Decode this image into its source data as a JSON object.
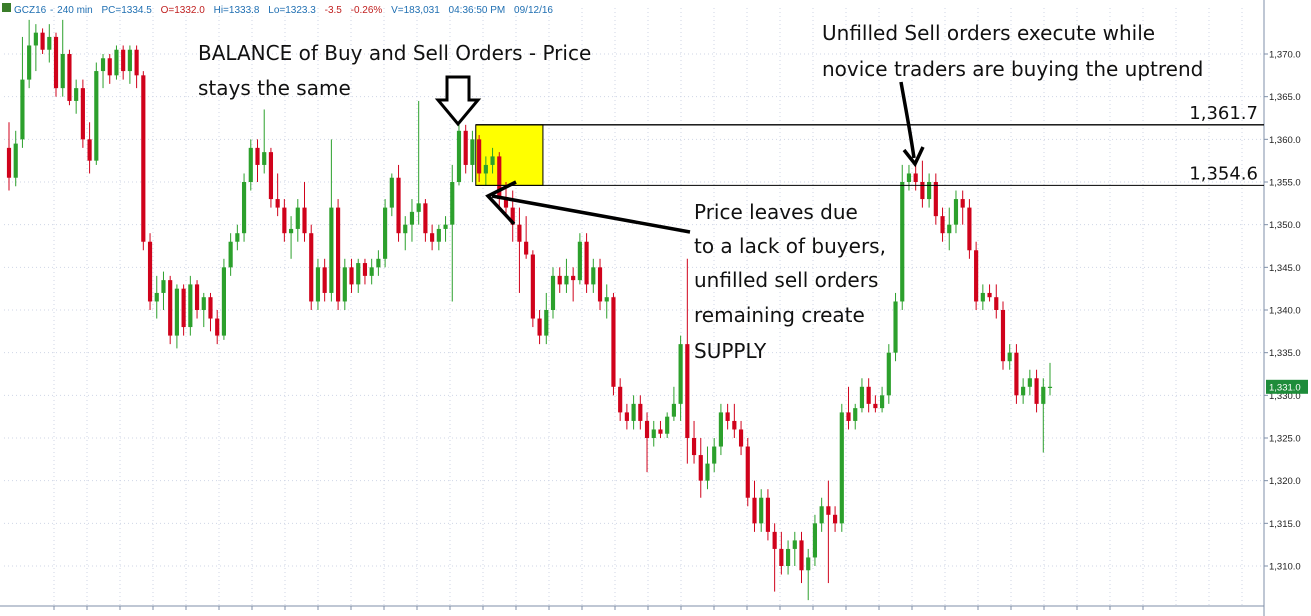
{
  "header": {
    "symbol": "GCZ16",
    "interval": "240 min",
    "pc": "PC=1334.5",
    "open": "O=1332.0",
    "high": "Hi=1333.8",
    "low": "Lo=1323.3",
    "change": "-3.5",
    "change_pct": "-0.26%",
    "volume": "V=183,031",
    "time": "04:36:50 PM",
    "date": "09/12/16"
  },
  "colors": {
    "up": "#2ca02c",
    "down": "#d0021b",
    "balance_box": "#ffff00",
    "grid": "#cfd6e6",
    "last_price_bg": "#1e8c3a"
  },
  "chart_data": {
    "type": "candlestick",
    "title": "",
    "xlabel": "",
    "ylabel": "",
    "ylim": [
      1306,
      1374
    ],
    "y_ticks": [
      1310,
      1315,
      1320,
      1325,
      1330,
      1335,
      1340,
      1345,
      1350,
      1355,
      1360,
      1365,
      1370
    ],
    "y_tick_labels": [
      "1,310.0",
      "1,315.0",
      "1,320.0",
      "1,325.0",
      "1,330.0",
      "1,335.0",
      "1,340.0",
      "1,345.0",
      "1,350.0",
      "1,355.0",
      "1,360.0",
      "1,365.0",
      "1,370.0"
    ],
    "last_price": 1331.0,
    "last_price_label": "1,331.0",
    "levels": [
      {
        "value": 1361.7,
        "label": "1,361.7"
      },
      {
        "value": 1354.6,
        "label": "1,354.6"
      }
    ],
    "balance_zone": {
      "start_index": 70,
      "end_index": 79,
      "low": 1354.6,
      "high": 1361.7
    },
    "annotations": {
      "balance": {
        "lines": [
          "BALANCE of Buy and Sell Orders - Price",
          "stays the same"
        ]
      },
      "unfilled": {
        "lines": [
          "Unfilled Sell orders execute while",
          "novice traders are buying the uptrend"
        ]
      },
      "leaves": {
        "lines": [
          "Price leaves due",
          "to a lack of buyers,",
          "unfilled sell orders",
          "remaining create",
          "SUPPLY"
        ]
      }
    },
    "candles": [
      {
        "o": 1359.0,
        "h": 1362.0,
        "l": 1354.0,
        "c": 1355.5
      },
      {
        "o": 1355.5,
        "h": 1361.0,
        "l": 1354.5,
        "c": 1359.5
      },
      {
        "o": 1360.0,
        "h": 1372.0,
        "l": 1359.0,
        "c": 1367.0
      },
      {
        "o": 1367.0,
        "h": 1374.0,
        "l": 1366.0,
        "c": 1371.0
      },
      {
        "o": 1371.0,
        "h": 1373.5,
        "l": 1368.0,
        "c": 1372.5
      },
      {
        "o": 1372.5,
        "h": 1373.0,
        "l": 1370.0,
        "c": 1370.5
      },
      {
        "o": 1370.5,
        "h": 1373.5,
        "l": 1369.0,
        "c": 1372.0
      },
      {
        "o": 1372.0,
        "h": 1372.5,
        "l": 1365.0,
        "c": 1366.0
      },
      {
        "o": 1366.0,
        "h": 1374.0,
        "l": 1365.0,
        "c": 1370.0
      },
      {
        "o": 1370.0,
        "h": 1370.5,
        "l": 1364.0,
        "c": 1364.5
      },
      {
        "o": 1364.5,
        "h": 1367.0,
        "l": 1363.0,
        "c": 1366.0
      },
      {
        "o": 1366.0,
        "h": 1367.0,
        "l": 1359.0,
        "c": 1360.0
      },
      {
        "o": 1360.0,
        "h": 1362.0,
        "l": 1356.0,
        "c": 1357.5
      },
      {
        "o": 1357.5,
        "h": 1369.0,
        "l": 1357.0,
        "c": 1368.0
      },
      {
        "o": 1368.0,
        "h": 1370.0,
        "l": 1366.0,
        "c": 1369.5
      },
      {
        "o": 1369.5,
        "h": 1370.0,
        "l": 1366.5,
        "c": 1367.5
      },
      {
        "o": 1367.5,
        "h": 1371.0,
        "l": 1367.0,
        "c": 1370.5
      },
      {
        "o": 1370.5,
        "h": 1371.0,
        "l": 1367.0,
        "c": 1368.0
      },
      {
        "o": 1368.0,
        "h": 1371.0,
        "l": 1366.5,
        "c": 1370.5
      },
      {
        "o": 1370.5,
        "h": 1371.0,
        "l": 1366.0,
        "c": 1367.5
      },
      {
        "o": 1367.5,
        "h": 1368.0,
        "l": 1347.0,
        "c": 1348.0
      },
      {
        "o": 1348.0,
        "h": 1349.0,
        "l": 1340.0,
        "c": 1341.0
      },
      {
        "o": 1341.0,
        "h": 1344.0,
        "l": 1339.0,
        "c": 1342.0
      },
      {
        "o": 1342.0,
        "h": 1344.5,
        "l": 1340.0,
        "c": 1343.5
      },
      {
        "o": 1343.5,
        "h": 1344.0,
        "l": 1336.0,
        "c": 1337.0
      },
      {
        "o": 1337.0,
        "h": 1343.0,
        "l": 1335.5,
        "c": 1342.5
      },
      {
        "o": 1342.5,
        "h": 1343.0,
        "l": 1337.0,
        "c": 1338.0
      },
      {
        "o": 1338.0,
        "h": 1344.0,
        "l": 1337.0,
        "c": 1343.0
      },
      {
        "o": 1343.0,
        "h": 1343.5,
        "l": 1339.0,
        "c": 1340.0
      },
      {
        "o": 1340.0,
        "h": 1342.0,
        "l": 1338.0,
        "c": 1341.5
      },
      {
        "o": 1341.5,
        "h": 1342.0,
        "l": 1337.5,
        "c": 1339.0
      },
      {
        "o": 1339.0,
        "h": 1340.0,
        "l": 1336.0,
        "c": 1337.0
      },
      {
        "o": 1337.0,
        "h": 1346.0,
        "l": 1336.5,
        "c": 1345.0
      },
      {
        "o": 1345.0,
        "h": 1349.0,
        "l": 1344.0,
        "c": 1348.0
      },
      {
        "o": 1348.0,
        "h": 1350.0,
        "l": 1347.0,
        "c": 1349.0
      },
      {
        "o": 1349.0,
        "h": 1356.0,
        "l": 1348.0,
        "c": 1355.0
      },
      {
        "o": 1355.0,
        "h": 1360.0,
        "l": 1354.0,
        "c": 1359.0
      },
      {
        "o": 1359.0,
        "h": 1360.0,
        "l": 1355.0,
        "c": 1357.0
      },
      {
        "o": 1357.0,
        "h": 1363.5,
        "l": 1356.0,
        "c": 1358.5
      },
      {
        "o": 1358.5,
        "h": 1359.0,
        "l": 1352.0,
        "c": 1353.0
      },
      {
        "o": 1353.0,
        "h": 1356.0,
        "l": 1351.0,
        "c": 1352.0
      },
      {
        "o": 1352.0,
        "h": 1353.0,
        "l": 1348.0,
        "c": 1349.0
      },
      {
        "o": 1349.0,
        "h": 1351.0,
        "l": 1346.0,
        "c": 1349.5
      },
      {
        "o": 1349.5,
        "h": 1353.0,
        "l": 1348.0,
        "c": 1352.0
      },
      {
        "o": 1352.0,
        "h": 1355.0,
        "l": 1348.0,
        "c": 1349.0
      },
      {
        "o": 1349.0,
        "h": 1350.0,
        "l": 1340.0,
        "c": 1341.0
      },
      {
        "o": 1341.0,
        "h": 1346.0,
        "l": 1340.0,
        "c": 1345.0
      },
      {
        "o": 1345.0,
        "h": 1346.0,
        "l": 1341.0,
        "c": 1342.0
      },
      {
        "o": 1342.0,
        "h": 1360.0,
        "l": 1341.0,
        "c": 1352.0
      },
      {
        "o": 1352.0,
        "h": 1353.0,
        "l": 1340.0,
        "c": 1341.0
      },
      {
        "o": 1341.0,
        "h": 1346.0,
        "l": 1340.0,
        "c": 1345.0
      },
      {
        "o": 1345.0,
        "h": 1346.0,
        "l": 1342.0,
        "c": 1343.0
      },
      {
        "o": 1343.0,
        "h": 1346.0,
        "l": 1342.0,
        "c": 1345.5
      },
      {
        "o": 1345.5,
        "h": 1346.0,
        "l": 1343.0,
        "c": 1344.0
      },
      {
        "o": 1344.0,
        "h": 1346.0,
        "l": 1343.0,
        "c": 1345.0
      },
      {
        "o": 1345.0,
        "h": 1347.0,
        "l": 1344.0,
        "c": 1346.0
      },
      {
        "o": 1346.0,
        "h": 1353.0,
        "l": 1345.0,
        "c": 1352.0
      },
      {
        "o": 1352.0,
        "h": 1356.0,
        "l": 1351.0,
        "c": 1355.5
      },
      {
        "o": 1355.5,
        "h": 1357.0,
        "l": 1348.0,
        "c": 1349.0
      },
      {
        "o": 1349.0,
        "h": 1351.0,
        "l": 1347.0,
        "c": 1350.0
      },
      {
        "o": 1350.0,
        "h": 1353.0,
        "l": 1348.0,
        "c": 1351.5
      },
      {
        "o": 1351.5,
        "h": 1364.5,
        "l": 1350.0,
        "c": 1352.5
      },
      {
        "o": 1352.5,
        "h": 1353.0,
        "l": 1348.0,
        "c": 1349.0
      },
      {
        "o": 1349.0,
        "h": 1350.0,
        "l": 1347.0,
        "c": 1348.0
      },
      {
        "o": 1348.0,
        "h": 1350.0,
        "l": 1347.0,
        "c": 1349.5
      },
      {
        "o": 1349.5,
        "h": 1351.0,
        "l": 1348.0,
        "c": 1350.0
      },
      {
        "o": 1350.0,
        "h": 1357.0,
        "l": 1341.0,
        "c": 1355.0
      },
      {
        "o": 1355.0,
        "h": 1361.7,
        "l": 1354.6,
        "c": 1361.0
      },
      {
        "o": 1361.0,
        "h": 1361.7,
        "l": 1356.0,
        "c": 1357.0
      },
      {
        "o": 1357.0,
        "h": 1361.0,
        "l": 1355.0,
        "c": 1360.0
      },
      {
        "o": 1360.0,
        "h": 1360.5,
        "l": 1355.0,
        "c": 1356.0
      },
      {
        "o": 1356.0,
        "h": 1358.0,
        "l": 1354.6,
        "c": 1357.0
      },
      {
        "o": 1357.0,
        "h": 1359.0,
        "l": 1356.0,
        "c": 1358.0
      },
      {
        "o": 1358.0,
        "h": 1358.5,
        "l": 1352.0,
        "c": 1353.0
      },
      {
        "o": 1353.0,
        "h": 1355.0,
        "l": 1351.0,
        "c": 1352.0
      },
      {
        "o": 1352.0,
        "h": 1354.0,
        "l": 1348.0,
        "c": 1350.0
      },
      {
        "o": 1350.0,
        "h": 1352.0,
        "l": 1342.0,
        "c": 1348.0
      },
      {
        "o": 1348.0,
        "h": 1351.0,
        "l": 1346.0,
        "c": 1346.5
      },
      {
        "o": 1346.5,
        "h": 1347.0,
        "l": 1338.0,
        "c": 1339.0
      },
      {
        "o": 1339.0,
        "h": 1340.0,
        "l": 1336.0,
        "c": 1337.0
      },
      {
        "o": 1337.0,
        "h": 1342.0,
        "l": 1336.0,
        "c": 1340.0
      },
      {
        "o": 1340.0,
        "h": 1345.0,
        "l": 1339.0,
        "c": 1344.0
      },
      {
        "o": 1344.0,
        "h": 1345.0,
        "l": 1342.0,
        "c": 1343.0
      },
      {
        "o": 1343.0,
        "h": 1346.0,
        "l": 1342.0,
        "c": 1344.0
      },
      {
        "o": 1344.0,
        "h": 1345.0,
        "l": 1341.0,
        "c": 1343.5
      },
      {
        "o": 1343.5,
        "h": 1349.0,
        "l": 1343.0,
        "c": 1348.0
      },
      {
        "o": 1348.0,
        "h": 1349.0,
        "l": 1342.0,
        "c": 1343.0
      },
      {
        "o": 1343.0,
        "h": 1346.0,
        "l": 1342.0,
        "c": 1345.0
      },
      {
        "o": 1345.0,
        "h": 1346.0,
        "l": 1340.0,
        "c": 1341.0
      },
      {
        "o": 1341.0,
        "h": 1343.0,
        "l": 1339.0,
        "c": 1341.5
      },
      {
        "o": 1341.5,
        "h": 1342.0,
        "l": 1330.0,
        "c": 1331.0
      },
      {
        "o": 1331.0,
        "h": 1332.0,
        "l": 1327.0,
        "c": 1328.0
      },
      {
        "o": 1328.0,
        "h": 1329.0,
        "l": 1326.0,
        "c": 1327.0
      },
      {
        "o": 1327.0,
        "h": 1330.0,
        "l": 1326.0,
        "c": 1329.0
      },
      {
        "o": 1329.0,
        "h": 1330.0,
        "l": 1326.0,
        "c": 1327.0
      },
      {
        "o": 1327.0,
        "h": 1328.0,
        "l": 1321.0,
        "c": 1325.0
      },
      {
        "o": 1325.0,
        "h": 1327.0,
        "l": 1324.0,
        "c": 1326.0
      },
      {
        "o": 1326.0,
        "h": 1327.0,
        "l": 1325.0,
        "c": 1325.5
      },
      {
        "o": 1325.5,
        "h": 1328.0,
        "l": 1325.0,
        "c": 1327.5
      },
      {
        "o": 1327.5,
        "h": 1331.0,
        "l": 1327.0,
        "c": 1329.0
      },
      {
        "o": 1329.0,
        "h": 1337.0,
        "l": 1327.0,
        "c": 1336.0
      },
      {
        "o": 1336.0,
        "h": 1346.0,
        "l": 1322.0,
        "c": 1325.0
      },
      {
        "o": 1325.0,
        "h": 1327.0,
        "l": 1322.0,
        "c": 1323.0
      },
      {
        "o": 1323.0,
        "h": 1325.0,
        "l": 1318.0,
        "c": 1320.0
      },
      {
        "o": 1320.0,
        "h": 1324.0,
        "l": 1319.0,
        "c": 1322.0
      },
      {
        "o": 1322.0,
        "h": 1325.0,
        "l": 1321.0,
        "c": 1324.0
      },
      {
        "o": 1324.0,
        "h": 1329.0,
        "l": 1323.0,
        "c": 1328.0
      },
      {
        "o": 1328.0,
        "h": 1329.0,
        "l": 1326.0,
        "c": 1327.0
      },
      {
        "o": 1327.0,
        "h": 1329.0,
        "l": 1325.0,
        "c": 1326.0
      },
      {
        "o": 1326.0,
        "h": 1327.0,
        "l": 1323.0,
        "c": 1324.0
      },
      {
        "o": 1324.0,
        "h": 1325.0,
        "l": 1317.0,
        "c": 1318.0
      },
      {
        "o": 1318.0,
        "h": 1320.0,
        "l": 1314.0,
        "c": 1315.0
      },
      {
        "o": 1315.0,
        "h": 1319.0,
        "l": 1314.0,
        "c": 1318.0
      },
      {
        "o": 1318.0,
        "h": 1319.0,
        "l": 1313.0,
        "c": 1314.0
      },
      {
        "o": 1314.0,
        "h": 1315.0,
        "l": 1307.0,
        "c": 1312.0
      },
      {
        "o": 1312.0,
        "h": 1314.0,
        "l": 1309.0,
        "c": 1310.0
      },
      {
        "o": 1310.0,
        "h": 1313.0,
        "l": 1309.0,
        "c": 1312.0
      },
      {
        "o": 1312.0,
        "h": 1314.0,
        "l": 1310.0,
        "c": 1313.0
      },
      {
        "o": 1313.0,
        "h": 1314.0,
        "l": 1308.0,
        "c": 1309.5
      },
      {
        "o": 1309.5,
        "h": 1312.0,
        "l": 1306.0,
        "c": 1311.0
      },
      {
        "o": 1311.0,
        "h": 1316.0,
        "l": 1310.0,
        "c": 1315.0
      },
      {
        "o": 1315.0,
        "h": 1318.0,
        "l": 1314.0,
        "c": 1317.0
      },
      {
        "o": 1317.0,
        "h": 1320.0,
        "l": 1308.0,
        "c": 1316.0
      },
      {
        "o": 1316.0,
        "h": 1317.0,
        "l": 1314.0,
        "c": 1315.0
      },
      {
        "o": 1315.0,
        "h": 1329.0,
        "l": 1314.0,
        "c": 1328.0
      },
      {
        "o": 1328.0,
        "h": 1331.0,
        "l": 1326.0,
        "c": 1327.0
      },
      {
        "o": 1327.0,
        "h": 1329.0,
        "l": 1326.0,
        "c": 1328.5
      },
      {
        "o": 1328.5,
        "h": 1332.0,
        "l": 1328.0,
        "c": 1331.0
      },
      {
        "o": 1331.0,
        "h": 1332.0,
        "l": 1328.0,
        "c": 1329.0
      },
      {
        "o": 1329.0,
        "h": 1330.0,
        "l": 1328.0,
        "c": 1328.5
      },
      {
        "o": 1328.5,
        "h": 1331.0,
        "l": 1328.0,
        "c": 1330.0
      },
      {
        "o": 1330.0,
        "h": 1336.0,
        "l": 1329.0,
        "c": 1335.0
      },
      {
        "o": 1335.0,
        "h": 1342.0,
        "l": 1334.0,
        "c": 1341.0
      },
      {
        "o": 1341.0,
        "h": 1357.0,
        "l": 1340.0,
        "c": 1355.0
      },
      {
        "o": 1355.0,
        "h": 1357.0,
        "l": 1354.0,
        "c": 1356.0
      },
      {
        "o": 1356.0,
        "h": 1357.0,
        "l": 1354.0,
        "c": 1355.0
      },
      {
        "o": 1355.0,
        "h": 1357.5,
        "l": 1352.0,
        "c": 1353.0
      },
      {
        "o": 1353.0,
        "h": 1356.0,
        "l": 1352.0,
        "c": 1355.0
      },
      {
        "o": 1355.0,
        "h": 1356.0,
        "l": 1350.0,
        "c": 1351.0
      },
      {
        "o": 1351.0,
        "h": 1352.0,
        "l": 1348.0,
        "c": 1349.0
      },
      {
        "o": 1349.0,
        "h": 1352.0,
        "l": 1347.0,
        "c": 1350.0
      },
      {
        "o": 1350.0,
        "h": 1354.0,
        "l": 1349.0,
        "c": 1353.0
      },
      {
        "o": 1353.0,
        "h": 1354.0,
        "l": 1350.0,
        "c": 1352.0
      },
      {
        "o": 1352.0,
        "h": 1353.0,
        "l": 1346.0,
        "c": 1347.0
      },
      {
        "o": 1347.0,
        "h": 1348.0,
        "l": 1340.0,
        "c": 1341.0
      },
      {
        "o": 1341.0,
        "h": 1343.0,
        "l": 1340.0,
        "c": 1342.0
      },
      {
        "o": 1342.0,
        "h": 1343.0,
        "l": 1341.0,
        "c": 1341.5
      },
      {
        "o": 1341.5,
        "h": 1343.0,
        "l": 1339.0,
        "c": 1340.0
      },
      {
        "o": 1340.0,
        "h": 1341.0,
        "l": 1333.0,
        "c": 1334.0
      },
      {
        "o": 1334.0,
        "h": 1336.0,
        "l": 1333.0,
        "c": 1335.0
      },
      {
        "o": 1335.0,
        "h": 1336.0,
        "l": 1329.0,
        "c": 1330.0
      },
      {
        "o": 1330.0,
        "h": 1332.0,
        "l": 1329.0,
        "c": 1331.0
      },
      {
        "o": 1331.0,
        "h": 1333.0,
        "l": 1330.0,
        "c": 1332.0
      },
      {
        "o": 1332.0,
        "h": 1333.0,
        "l": 1328.0,
        "c": 1329.0
      },
      {
        "o": 1329.0,
        "h": 1332.0,
        "l": 1323.3,
        "c": 1331.0
      },
      {
        "o": 1331.0,
        "h": 1333.8,
        "l": 1330.0,
        "c": 1331.0
      }
    ]
  }
}
